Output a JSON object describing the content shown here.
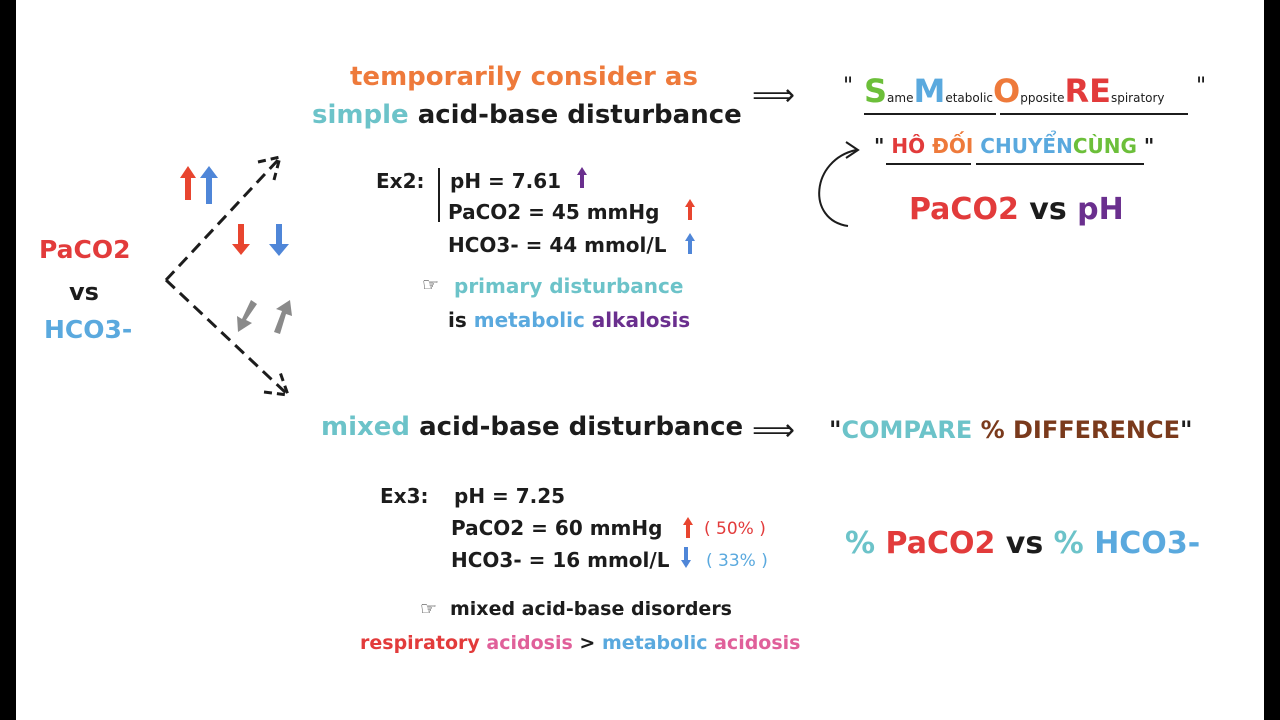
{
  "colors": {
    "red": "#e23b3b",
    "orange": "#ee7a3b",
    "teal": "#6cc3c9",
    "blue": "#5aa9de",
    "purple": "#6a2f8e",
    "pink": "#e0609a",
    "green": "#6cbf3a",
    "brown": "#7a3a1c",
    "grey": "#9a9a9a"
  },
  "left": {
    "paco2": "PaCO2",
    "vs": "vs",
    "hco3": "HCO3-"
  },
  "top": {
    "line1": "temporarily consider as",
    "simple": "simple",
    "rest": "acid-base disturbance",
    "implies": "⟹",
    "ex_label": "Ex2:",
    "ph": "pH = 7.61",
    "paco2": "PaCO2 = 45 mmHg",
    "hco3": "HCO3- = 44 mmol/L",
    "pointer": "☞",
    "primary": "primary disturbance",
    "is": "is",
    "metabolic": "metabolic",
    "alkalosis": "alkalosis"
  },
  "mnemonic": {
    "quote_open": "\"",
    "quote_close": "\"",
    "s_big": "S",
    "s_small": "ame",
    "m_big": "M",
    "m_small": "etabolic",
    "o_big": "O",
    "o_small": "pposite",
    "re_big": "RE",
    "re_small": "spiratory",
    "viet_open": "\"",
    "ho": "HÔ",
    "doi": "ĐỐI",
    "chuyen": "CHUYỂN",
    "cung": "CÙNG",
    "viet_close": "\"",
    "pco2": "PaCO2",
    "vs": "vs",
    "ph": "pH"
  },
  "bottom": {
    "mixed": "mixed",
    "rest": "acid-base disturbance",
    "implies": "⟹",
    "compare_q1": "\"",
    "compare": "COMPARE",
    "difference": "% DIFFERENCE",
    "compare_q2": "\"",
    "ex_label": "Ex3:",
    "ph": "pH = 7.25",
    "paco2": "PaCO2 = 60 mmHg",
    "paco2_pct": "( 50% )",
    "hco3": "HCO3- = 16 mmol/L",
    "hco3_pct": "( 33% )",
    "pct1": "%",
    "pco2": "PaCO2",
    "vs": "vs",
    "pct2": "%",
    "hco3b": "HCO3-",
    "pointer": "☞",
    "mixed_disorders": "mixed acid-base disorders",
    "respiratory": "respiratory",
    "acidosis1": "acidosis",
    "gt": ">",
    "metabolic": "metabolic",
    "acidosis2": "acidosis"
  }
}
